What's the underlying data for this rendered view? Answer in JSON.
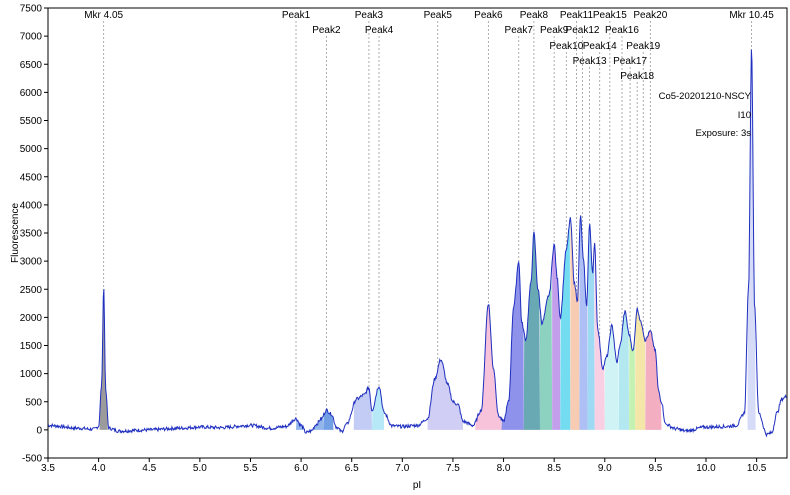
{
  "chart_data": {
    "type": "line",
    "title": "",
    "xlabel": "pI",
    "ylabel": "Fluorescence",
    "xlim": [
      3.5,
      10.8
    ],
    "ylim": [
      -500,
      7500
    ],
    "x_ticks": [
      3.5,
      4.0,
      4.5,
      5.0,
      5.5,
      6.0,
      6.5,
      7.0,
      7.5,
      8.0,
      8.5,
      9.0,
      9.5,
      10.0,
      10.5
    ],
    "x_tick_labels": [
      "3.5",
      "4.0",
      "4.5",
      "5.0",
      "5.5",
      "6.0",
      "6.5",
      "7.0",
      "7.5",
      "8.0",
      "8.5",
      "9.0",
      "9.5",
      "10.0",
      "10.5"
    ],
    "y_ticks": [
      -500,
      0,
      500,
      1000,
      1500,
      2000,
      2500,
      3000,
      3500,
      4000,
      4500,
      5000,
      5500,
      6000,
      6500,
      7000,
      7500
    ],
    "y_tick_labels": [
      "-500",
      "0",
      "500",
      "1000",
      "1500",
      "2000",
      "2500",
      "3000",
      "3500",
      "4000",
      "4500",
      "5000",
      "5500",
      "6000",
      "6500",
      "7000",
      "7500"
    ],
    "line_color": "#1f2fbf",
    "annotations": [
      "Co5-20201210-NSCY",
      "I10",
      "Exposure: 3s"
    ],
    "markers": [
      {
        "label": "Mkr 4.05",
        "x": 4.05,
        "height": 2550,
        "color": "#8a8a8a"
      },
      {
        "label": "Mkr 10.45",
        "x": 10.45,
        "height": 6800,
        "color": "#cfd5f7"
      }
    ],
    "peaks": [
      {
        "label": "Peak1",
        "x": 5.95,
        "row": 0,
        "start": 5.95,
        "end": 6.22,
        "color": "#7fa8e8"
      },
      {
        "label": "Peak2",
        "x": 6.25,
        "row": 1,
        "start": 6.22,
        "end": 6.32,
        "color": "#5b8fe0"
      },
      {
        "label": "Peak3",
        "x": 6.67,
        "row": 0,
        "start": 6.52,
        "end": 6.7,
        "color": "#b8c3f2"
      },
      {
        "label": "Peak4",
        "x": 6.77,
        "row": 1,
        "start": 6.7,
        "end": 6.82,
        "color": "#a9e4f7"
      },
      {
        "label": "Peak5",
        "x": 7.35,
        "row": 0,
        "start": 7.25,
        "end": 7.6,
        "color": "#c8c6f2"
      },
      {
        "label": "Peak6",
        "x": 7.85,
        "row": 0,
        "start": 7.72,
        "end": 7.98,
        "color": "#f4b9d3"
      },
      {
        "label": "Peak7",
        "x": 8.15,
        "row": 1,
        "start": 7.98,
        "end": 8.2,
        "color": "#7b7fe6"
      },
      {
        "label": "Peak8",
        "x": 8.3,
        "row": 0,
        "start": 8.2,
        "end": 8.36,
        "color": "#4f9aa6"
      },
      {
        "label": "Peak9",
        "x": 8.5,
        "row": 1,
        "start": 8.36,
        "end": 8.48,
        "color": "#79c9b5"
      },
      {
        "label": "Peak10",
        "x": 8.62,
        "row": 2,
        "start": 8.48,
        "end": 8.56,
        "color": "#b98de8"
      },
      {
        "label": "Peak11",
        "x": 8.72,
        "row": 0,
        "start": 8.56,
        "end": 8.66,
        "color": "#5cd6ef"
      },
      {
        "label": "Peak12",
        "x": 8.78,
        "row": 1,
        "start": 8.66,
        "end": 8.75,
        "color": "#f7c3a6"
      },
      {
        "label": "Peak13",
        "x": 8.85,
        "row": 3,
        "start": 8.75,
        "end": 8.83,
        "color": "#9fb4f2"
      },
      {
        "label": "Peak14",
        "x": 8.95,
        "row": 2,
        "start": 8.83,
        "end": 8.9,
        "color": "#8ed3f2"
      },
      {
        "label": "Peak15",
        "x": 9.05,
        "row": 0,
        "start": 8.9,
        "end": 9.0,
        "color": "#f7c7de"
      },
      {
        "label": "Peak16",
        "x": 9.17,
        "row": 1,
        "start": 9.0,
        "end": 9.14,
        "color": "#c8f2f5"
      },
      {
        "label": "Peak17",
        "x": 9.25,
        "row": 3,
        "start": 9.14,
        "end": 9.24,
        "color": "#a7e4ee"
      },
      {
        "label": "Peak18",
        "x": 9.32,
        "row": 4,
        "start": 9.24,
        "end": 9.3,
        "color": "#b8f0a6"
      },
      {
        "label": "Peak19",
        "x": 9.38,
        "row": 2,
        "start": 9.3,
        "end": 9.4,
        "color": "#f2e199"
      },
      {
        "label": "Peak20",
        "x": 9.45,
        "row": 0,
        "start": 9.4,
        "end": 9.56,
        "color": "#f1a0b6"
      }
    ],
    "trace_points": [
      [
        3.5,
        80
      ],
      [
        3.8,
        30
      ],
      [
        3.95,
        10
      ],
      [
        4.0,
        60
      ],
      [
        4.03,
        800
      ],
      [
        4.05,
        2550
      ],
      [
        4.07,
        700
      ],
      [
        4.1,
        30
      ],
      [
        4.2,
        -20
      ],
      [
        4.5,
        0
      ],
      [
        4.8,
        30
      ],
      [
        5.0,
        50
      ],
      [
        5.2,
        40
      ],
      [
        5.5,
        80
      ],
      [
        5.7,
        30
      ],
      [
        5.85,
        60
      ],
      [
        5.95,
        200
      ],
      [
        6.0,
        80
      ],
      [
        6.05,
        -50
      ],
      [
        6.1,
        -20
      ],
      [
        6.15,
        100
      ],
      [
        6.2,
        200
      ],
      [
        6.25,
        350
      ],
      [
        6.3,
        280
      ],
      [
        6.35,
        50
      ],
      [
        6.4,
        -30
      ],
      [
        6.45,
        100
      ],
      [
        6.55,
        550
      ],
      [
        6.62,
        620
      ],
      [
        6.67,
        750
      ],
      [
        6.7,
        350
      ],
      [
        6.77,
        780
      ],
      [
        6.82,
        300
      ],
      [
        6.9,
        70
      ],
      [
        7.0,
        60
      ],
      [
        7.15,
        80
      ],
      [
        7.25,
        200
      ],
      [
        7.32,
        900
      ],
      [
        7.38,
        1250
      ],
      [
        7.45,
        800
      ],
      [
        7.5,
        500
      ],
      [
        7.55,
        450
      ],
      [
        7.6,
        150
      ],
      [
        7.7,
        80
      ],
      [
        7.78,
        350
      ],
      [
        7.85,
        2250
      ],
      [
        7.9,
        1100
      ],
      [
        7.95,
        250
      ],
      [
        8.0,
        150
      ],
      [
        8.05,
        500
      ],
      [
        8.1,
        2200
      ],
      [
        8.15,
        3000
      ],
      [
        8.18,
        1900
      ],
      [
        8.22,
        1600
      ],
      [
        8.27,
        2600
      ],
      [
        8.3,
        3500
      ],
      [
        8.34,
        2500
      ],
      [
        8.38,
        1900
      ],
      [
        8.45,
        2400
      ],
      [
        8.5,
        3300
      ],
      [
        8.53,
        2700
      ],
      [
        8.56,
        2000
      ],
      [
        8.62,
        3200
      ],
      [
        8.66,
        3750
      ],
      [
        8.7,
        2600
      ],
      [
        8.73,
        2300
      ],
      [
        8.76,
        3800
      ],
      [
        8.79,
        3000
      ],
      [
        8.82,
        2200
      ],
      [
        8.85,
        3650
      ],
      [
        8.88,
        2800
      ],
      [
        8.9,
        3300
      ],
      [
        8.93,
        1800
      ],
      [
        8.98,
        1100
      ],
      [
        9.02,
        1300
      ],
      [
        9.07,
        1850
      ],
      [
        9.12,
        1200
      ],
      [
        9.15,
        1500
      ],
      [
        9.2,
        2100
      ],
      [
        9.24,
        1700
      ],
      [
        9.28,
        1400
      ],
      [
        9.32,
        2150
      ],
      [
        9.36,
        1900
      ],
      [
        9.4,
        1600
      ],
      [
        9.45,
        1750
      ],
      [
        9.5,
        1400
      ],
      [
        9.53,
        700
      ],
      [
        9.56,
        500
      ],
      [
        9.6,
        100
      ],
      [
        9.7,
        20
      ],
      [
        9.8,
        -20
      ],
      [
        10.0,
        50
      ],
      [
        10.2,
        60
      ],
      [
        10.3,
        80
      ],
      [
        10.38,
        300
      ],
      [
        10.42,
        2500
      ],
      [
        10.45,
        6800
      ],
      [
        10.48,
        2200
      ],
      [
        10.52,
        300
      ],
      [
        10.6,
        -80
      ],
      [
        10.65,
        -50
      ],
      [
        10.7,
        300
      ],
      [
        10.75,
        550
      ],
      [
        10.8,
        600
      ]
    ]
  }
}
